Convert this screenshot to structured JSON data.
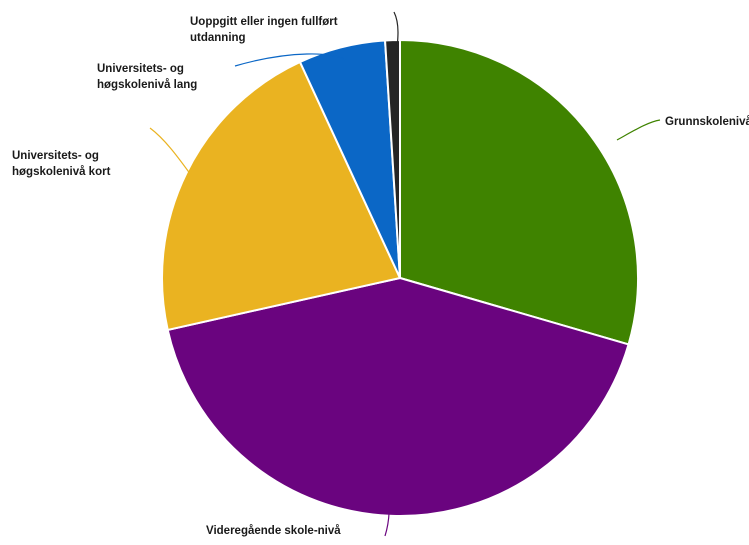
{
  "chart_data": {
    "type": "pie",
    "title": "",
    "slices": [
      {
        "label": "Grunnskolenivå",
        "value": 29.5,
        "color": "#3f8300",
        "label_line": [
          "Grunnskolenivå"
        ]
      },
      {
        "label": "Videregående skole-nivå",
        "value": 42.0,
        "color": "#6a047f",
        "label_line": [
          "Videregående skole-nivå"
        ]
      },
      {
        "label": "Universitets- og høgskolenivå kort",
        "value": 21.6,
        "color": "#eab321",
        "label_line": [
          "Universitets- og",
          "høgskolenivå kort"
        ]
      },
      {
        "label": "Universitets- og høgskolenivå lang",
        "value": 5.9,
        "color": "#0b67c6",
        "label_line": [
          "Universitets- og",
          "høgskolenivå lang"
        ]
      },
      {
        "label": "Uoppgitt eller ingen fullført utdanning",
        "value": 1.0,
        "color": "#252525",
        "label_line": [
          "Uoppgitt eller ingen fullført",
          "utdanning"
        ]
      }
    ],
    "legend": "none",
    "start_angle": "12 o'clock",
    "direction": "clockwise"
  }
}
